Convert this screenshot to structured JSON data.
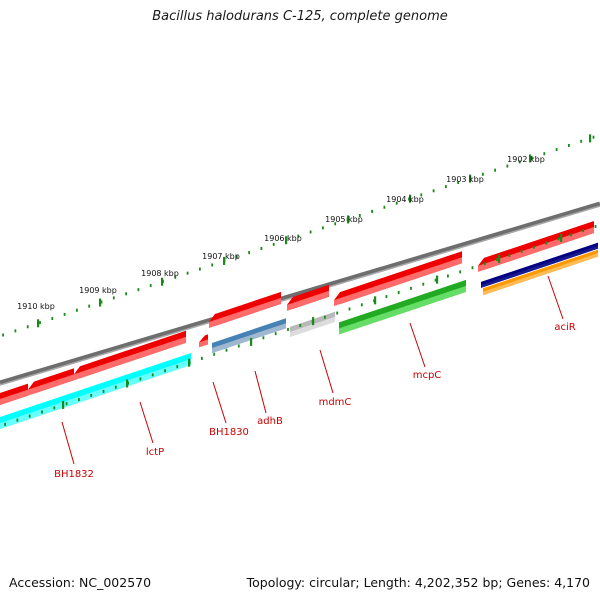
{
  "title": "Bacillus halodurans C-125, complete genome",
  "footer": {
    "accession": "Accession: NC_002570",
    "stats": "Topology: circular; Length: 4,202,352 bp; Genes: 4,170"
  },
  "colors": {
    "backbone": "#808080",
    "forward_gene": "#ee0000",
    "reverse_gene": "#00ffff",
    "tick": "#1a8a1a",
    "label": "#cc0000"
  },
  "scale_labels": [
    "1910 kbp",
    "1909 kbp",
    "1908 kbp",
    "1907 kbp",
    "1906 kbp",
    "1905 kbp",
    "1904 kbp",
    "1903 kbp",
    "1902 kbp"
  ],
  "gene_labels": [
    "BH1832",
    "lctP",
    "BH1830",
    "adhB",
    "mdmC",
    "mcpC",
    "aciR"
  ]
}
